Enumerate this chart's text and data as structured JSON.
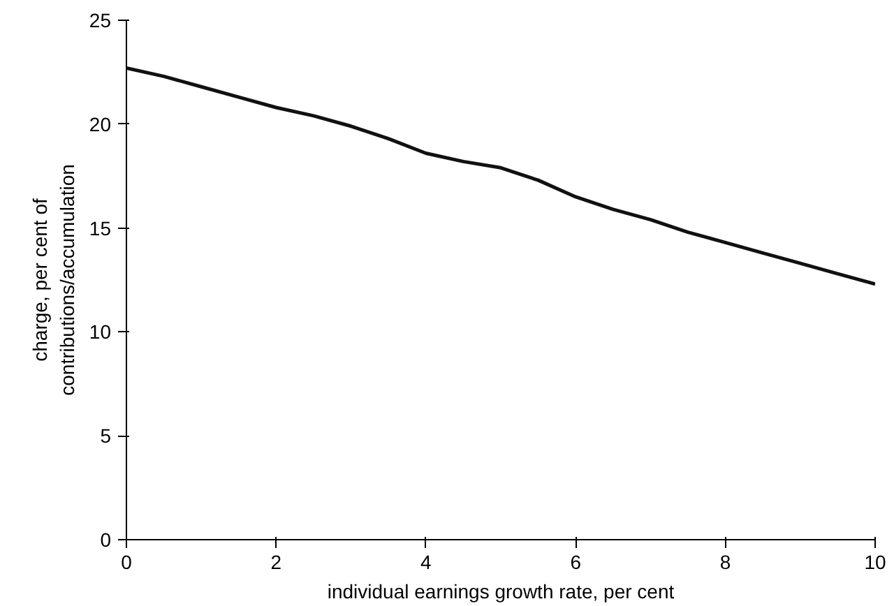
{
  "chart_data": {
    "type": "line",
    "xlabel": "individual earnings growth rate, per cent",
    "ylabel": "charge, per cent of\ncontributions/accumulation",
    "x": [
      0,
      0.5,
      1,
      1.5,
      2,
      2.5,
      3,
      3.5,
      4,
      4.5,
      5,
      5.5,
      6,
      6.5,
      7,
      7.5,
      8,
      8.5,
      9,
      9.5,
      10
    ],
    "series": [
      {
        "color": "#111111",
        "values": [
          22.7,
          22.3,
          21.8,
          21.3,
          20.8,
          20.4,
          19.9,
          19.3,
          18.6,
          18.2,
          17.9,
          17.3,
          16.5,
          15.9,
          15.4,
          14.8,
          14.3,
          13.8,
          13.3,
          12.8,
          12.3
        ]
      }
    ],
    "xlim": [
      0,
      10
    ],
    "ylim": [
      0,
      25
    ],
    "xticks": [
      0,
      2,
      4,
      6,
      8,
      10
    ],
    "yticks": [
      0,
      5,
      10,
      15,
      20,
      25
    ],
    "grid": false,
    "marker": "none",
    "line_style": "solid"
  }
}
